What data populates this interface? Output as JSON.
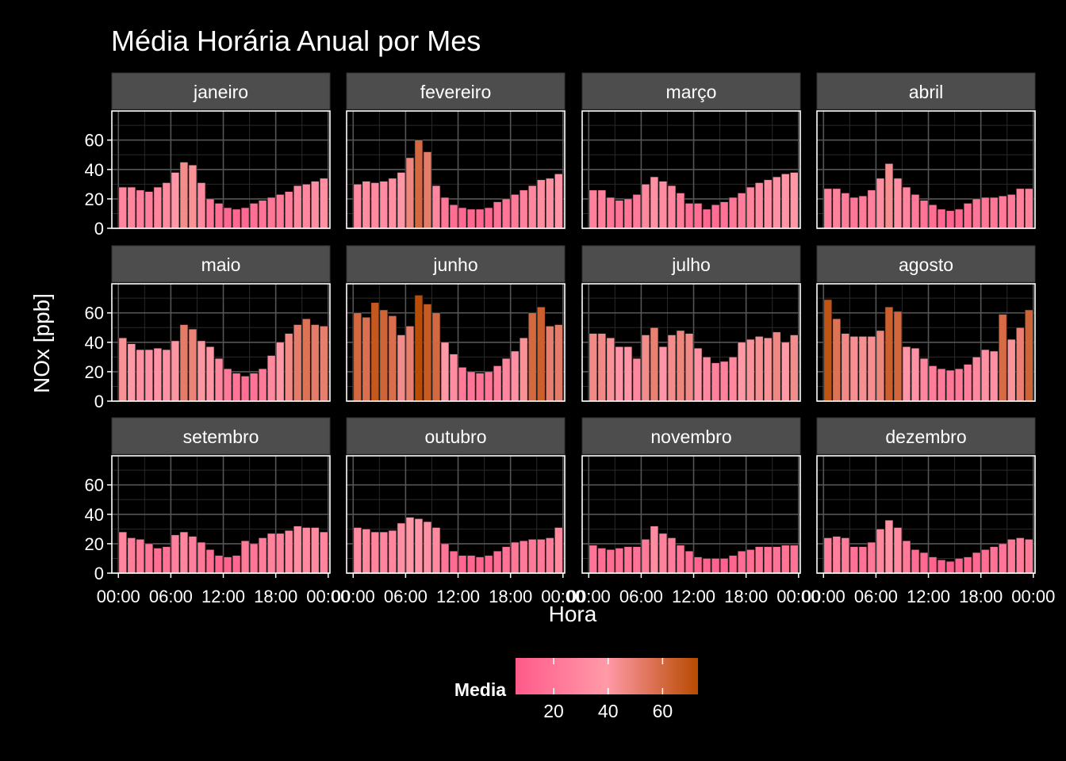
{
  "chart_data": {
    "type": "bar",
    "layout": "facet-grid",
    "title": "Média Horária Anual por Mes",
    "xlabel": "Hora",
    "ylabel": "NOx [ppb]",
    "ylim": [
      0,
      75
    ],
    "y_ticks": [
      0,
      20,
      40,
      60
    ],
    "x_tick_labels": [
      "00:00",
      "06:00",
      "12:00",
      "18:00",
      "00:00"
    ],
    "grid": true,
    "hours": [
      0,
      1,
      2,
      3,
      4,
      5,
      6,
      7,
      8,
      9,
      10,
      11,
      12,
      13,
      14,
      15,
      16,
      17,
      18,
      19,
      20,
      21,
      22,
      23
    ],
    "legend": {
      "title": "Media",
      "position": "bottom",
      "ticks": [
        20,
        40,
        60
      ],
      "range": [
        6,
        73
      ],
      "colors": [
        "#ff5a8a",
        "#ff9aa8",
        "#b84a00"
      ]
    },
    "panels": [
      {
        "name": "janeiro",
        "values": [
          28,
          28,
          26,
          25,
          28,
          31,
          38,
          45,
          43,
          31,
          20,
          17,
          14,
          13,
          14,
          17,
          19,
          21,
          23,
          25,
          29,
          30,
          32,
          34
        ]
      },
      {
        "name": "fevereiro",
        "values": [
          30,
          32,
          31,
          32,
          34,
          38,
          48,
          60,
          52,
          29,
          21,
          16,
          14,
          13,
          13,
          14,
          18,
          20,
          23,
          26,
          29,
          33,
          34,
          37
        ]
      },
      {
        "name": "março",
        "values": [
          26,
          26,
          21,
          19,
          20,
          23,
          30,
          35,
          32,
          29,
          24,
          17,
          17,
          13,
          16,
          18,
          21,
          24,
          28,
          31,
          33,
          35,
          37,
          38
        ]
      },
      {
        "name": "abril",
        "values": [
          27,
          27,
          24,
          21,
          22,
          26,
          34,
          44,
          34,
          28,
          23,
          19,
          16,
          13,
          12,
          13,
          17,
          20,
          21,
          21,
          22,
          23,
          27,
          27
        ]
      },
      {
        "name": "maio",
        "values": [
          43,
          39,
          35,
          35,
          36,
          35,
          41,
          52,
          49,
          41,
          37,
          29,
          22,
          19,
          17,
          19,
          22,
          31,
          40,
          46,
          52,
          56,
          52,
          51
        ]
      },
      {
        "name": "junho",
        "values": [
          60,
          57,
          67,
          62,
          58,
          45,
          51,
          72,
          66,
          60,
          40,
          32,
          23,
          20,
          19,
          20,
          24,
          29,
          34,
          43,
          60,
          64,
          51,
          52
        ]
      },
      {
        "name": "julho",
        "values": [
          46,
          46,
          43,
          37,
          37,
          29,
          45,
          50,
          37,
          45,
          48,
          46,
          36,
          30,
          26,
          27,
          30,
          40,
          42,
          44,
          43,
          47,
          40,
          45
        ]
      },
      {
        "name": "agosto",
        "values": [
          69,
          56,
          46,
          44,
          44,
          44,
          48,
          64,
          61,
          37,
          36,
          29,
          24,
          22,
          21,
          22,
          25,
          30,
          35,
          34,
          59,
          42,
          50,
          62
        ]
      },
      {
        "name": "setembro",
        "values": [
          28,
          24,
          23,
          20,
          17,
          18,
          26,
          28,
          25,
          21,
          16,
          12,
          11,
          12,
          22,
          20,
          24,
          27,
          27,
          29,
          32,
          31,
          31,
          28
        ]
      },
      {
        "name": "outubro",
        "values": [
          31,
          30,
          28,
          28,
          29,
          34,
          38,
          37,
          35,
          31,
          20,
          15,
          12,
          12,
          11,
          12,
          15,
          18,
          21,
          22,
          23,
          23,
          24,
          31
        ]
      },
      {
        "name": "novembro",
        "values": [
          19,
          17,
          16,
          17,
          18,
          18,
          23,
          32,
          27,
          24,
          19,
          15,
          11,
          10,
          10,
          10,
          12,
          15,
          16,
          18,
          18,
          18,
          19,
          19
        ]
      },
      {
        "name": "dezembro",
        "values": [
          24,
          25,
          24,
          18,
          18,
          21,
          30,
          36,
          31,
          22,
          16,
          14,
          11,
          9,
          8,
          10,
          11,
          14,
          16,
          18,
          20,
          23,
          24,
          23
        ]
      }
    ]
  }
}
